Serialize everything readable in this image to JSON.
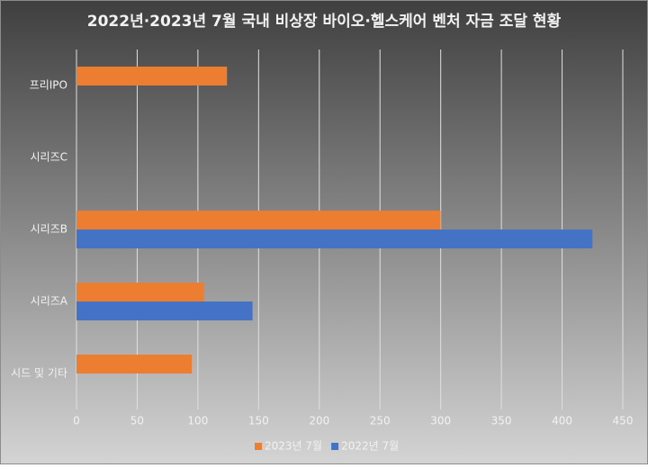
{
  "chart_data": {
    "type": "hbar",
    "title": "2022년·2023년 7월 국내 비상장 바이오·헬스케어 벤처 자금 조달 현황",
    "categories": [
      "프리IPO",
      "시리즈C",
      "시리즈B",
      "시리즈A",
      "시드 및 기타"
    ],
    "series": [
      {
        "name": "2023년 7월",
        "color": "#ed7d31",
        "values": [
          124,
          null,
          300,
          105,
          95
        ]
      },
      {
        "name": "2022년 7월",
        "color": "#4472c4",
        "values": [
          null,
          null,
          425,
          145,
          null
        ]
      }
    ],
    "xlim": [
      0,
      450
    ],
    "xticks": [
      0,
      50,
      100,
      150,
      200,
      250,
      300,
      350,
      400,
      450
    ],
    "grid": true,
    "legend": "bottom"
  }
}
